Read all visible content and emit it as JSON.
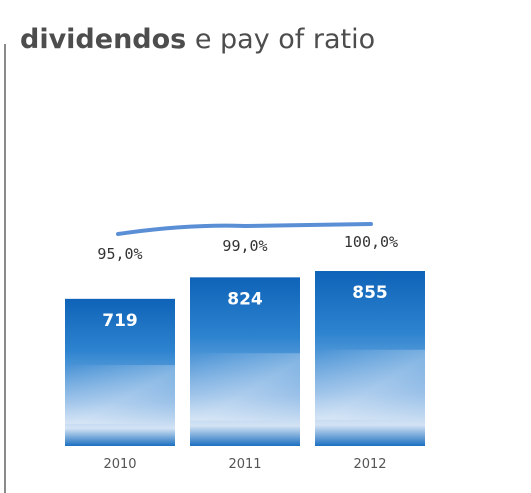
{
  "title": {
    "bold": "dividendos",
    "rest": " e pay of ratio"
  },
  "chart_data": {
    "type": "bar",
    "categories": [
      "2010",
      "2011",
      "2012"
    ],
    "values": [
      719,
      824,
      855
    ],
    "value_labels": [
      "719",
      "824",
      "855"
    ],
    "line_series": {
      "values": [
        95.0,
        99.0,
        100.0
      ],
      "labels": [
        "95,0%",
        "99,0%",
        "100,0%"
      ]
    },
    "bar_color": "#1673c4",
    "bar_light": "#d8e6f5",
    "line_color": "#5a8fd6",
    "grid": false
  }
}
